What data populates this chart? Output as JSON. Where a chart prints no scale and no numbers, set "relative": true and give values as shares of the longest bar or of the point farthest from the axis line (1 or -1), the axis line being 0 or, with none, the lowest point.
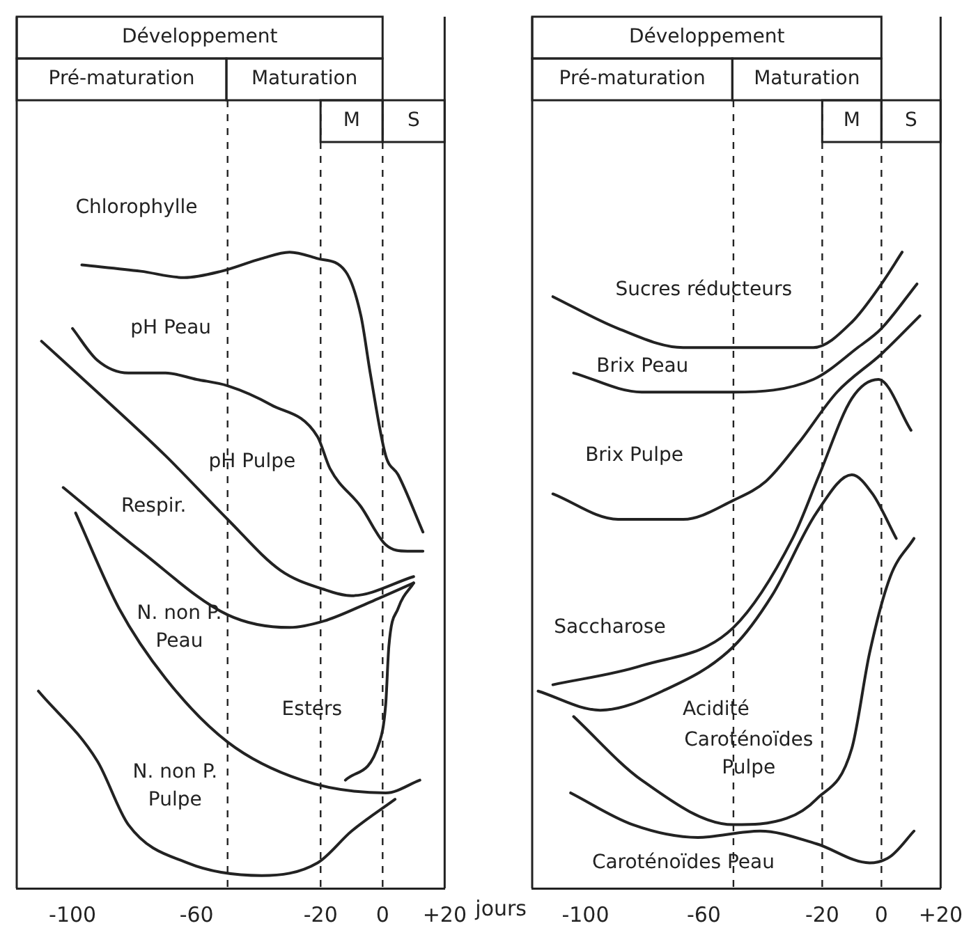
{
  "chart_data": [
    {
      "type": "line",
      "relative": true,
      "xlim": [
        -118,
        20
      ],
      "xticks": [
        -100,
        -60,
        -20,
        0,
        {
          "value": 20,
          "label": "+20"
        }
      ],
      "grid": false,
      "legend": false,
      "marker": "none",
      "line_style": "solid",
      "series": [
        {
          "name": "Chlorophylle",
          "color": "#222222",
          "x": [
            -97,
            -78,
            -64,
            -52,
            -39,
            -30,
            -21,
            -12,
            -7,
            -4,
            1,
            5,
            13
          ],
          "values": [
            0.98,
            0.97,
            0.96,
            0.97,
            0.99,
            1.0,
            0.99,
            0.97,
            0.9,
            0.81,
            0.68,
            0.65,
            0.56
          ]
        },
        {
          "name": "pH Peau",
          "color": "#222222",
          "x": [
            -100,
            -92,
            -82,
            -70,
            -60,
            -50,
            -36,
            -21,
            -17,
            -7,
            1,
            8,
            13
          ],
          "values": [
            0.88,
            0.83,
            0.81,
            0.81,
            0.8,
            0.79,
            0.76,
            0.71,
            0.66,
            0.6,
            0.54,
            0.53,
            0.53
          ]
        },
        {
          "name": "pH Pulpe",
          "color": "#222222",
          "x": [
            -110,
            -92,
            -70,
            -50,
            -33,
            -19,
            -10,
            10
          ],
          "values": [
            0.86,
            0.78,
            0.68,
            0.58,
            0.5,
            0.47,
            0.46,
            0.49
          ]
        },
        {
          "name": "Respir.",
          "color": "#222222",
          "x": [
            -103,
            -78,
            -50,
            -30,
            -19,
            -4,
            10
          ],
          "values": [
            0.63,
            0.53,
            0.43,
            0.41,
            0.42,
            0.45,
            0.48
          ]
        },
        {
          "name": "N. non P. Peau",
          "color": "#222222",
          "x": [
            -99,
            -85,
            -70,
            -50,
            -26,
            1,
            12
          ],
          "values": [
            0.59,
            0.44,
            0.33,
            0.23,
            0.17,
            0.15,
            0.17
          ]
        },
        {
          "name": "Esters",
          "color": "#222222",
          "x": [
            -12,
            -1,
            1,
            2,
            5,
            10
          ],
          "values": [
            0.17,
            0.23,
            0.29,
            0.38,
            0.44,
            0.48
          ]
        },
        {
          "name": "N. non P. Pulpe",
          "color": "#222222",
          "x": [
            -111,
            -92,
            -82,
            -63,
            -39,
            -21,
            -10,
            4
          ],
          "values": [
            0.31,
            0.2,
            0.1,
            0.04,
            0.02,
            0.04,
            0.09,
            0.14
          ]
        }
      ],
      "ref_lines": [
        {
          "axis": "x",
          "value": -50,
          "line_style": "dashed"
        },
        {
          "axis": "x",
          "value": -20,
          "line_style": "dashed"
        },
        {
          "axis": "x",
          "value": 0,
          "line_style": "dashed"
        }
      ],
      "annotations": [
        "Développement",
        "Pré-maturation",
        "Maturation",
        "M",
        "S"
      ]
    },
    {
      "type": "line",
      "relative": true,
      "xlabel": "jours",
      "xlim": [
        -118,
        20
      ],
      "xticks": [
        -100,
        -60,
        -20,
        0,
        {
          "value": 20,
          "label": "+20"
        }
      ],
      "grid": false,
      "legend": false,
      "marker": "none",
      "line_style": "solid",
      "series": [
        {
          "name": "Sucres réducteurs",
          "color": "#222222",
          "x": [
            -111,
            -89,
            -67,
            -44,
            -23,
            -10,
            0,
            7
          ],
          "values": [
            0.93,
            0.88,
            0.85,
            0.85,
            0.85,
            0.89,
            0.95,
            1.0
          ]
        },
        {
          "name": "Brix Peau",
          "color": "#222222",
          "x": [
            -104,
            -81,
            -50,
            -23,
            -8,
            0,
            12
          ],
          "values": [
            0.81,
            0.78,
            0.78,
            0.8,
            0.85,
            0.88,
            0.95
          ]
        },
        {
          "name": "Brix Pulpe",
          "color": "#222222",
          "x": [
            -111,
            -89,
            -67,
            -50,
            -39,
            -28,
            -15,
            0,
            13
          ],
          "values": [
            0.62,
            0.58,
            0.58,
            0.61,
            0.64,
            0.7,
            0.78,
            0.84,
            0.9
          ]
        },
        {
          "name": "Saccharose",
          "color": "#222222",
          "x": [
            -111,
            -81,
            -50,
            -30,
            -21,
            -10,
            -1,
            10
          ],
          "values": [
            0.32,
            0.35,
            0.41,
            0.55,
            0.65,
            0.77,
            0.8,
            0.72
          ]
        },
        {
          "name": "Acidité",
          "color": "#222222",
          "x": [
            -116,
            -95,
            -74,
            -50,
            -37,
            -22,
            -10,
            -3,
            5
          ],
          "values": [
            0.31,
            0.28,
            0.31,
            0.38,
            0.46,
            0.59,
            0.65,
            0.62,
            0.55
          ]
        },
        {
          "name": "Caroténoïdes Pulpe",
          "color": "#222222",
          "x": [
            -104,
            -81,
            -50,
            -32,
            -22,
            -10,
            -4,
            3,
            11
          ],
          "values": [
            0.27,
            0.17,
            0.1,
            0.11,
            0.14,
            0.22,
            0.37,
            0.49,
            0.55
          ]
        },
        {
          "name": "Caroténoïdes Peau",
          "color": "#222222",
          "x": [
            -105,
            -84,
            -62,
            -41,
            -22,
            -4,
            3,
            11
          ],
          "values": [
            0.15,
            0.1,
            0.08,
            0.09,
            0.07,
            0.04,
            0.05,
            0.09
          ]
        }
      ],
      "ref_lines": [
        {
          "axis": "x",
          "value": -50,
          "line_style": "dashed"
        },
        {
          "axis": "x",
          "value": -20,
          "line_style": "dashed"
        },
        {
          "axis": "x",
          "value": 0,
          "line_style": "dashed"
        }
      ],
      "annotations": [
        "Développement",
        "Pré-maturation",
        "Maturation",
        "M",
        "S"
      ]
    }
  ]
}
